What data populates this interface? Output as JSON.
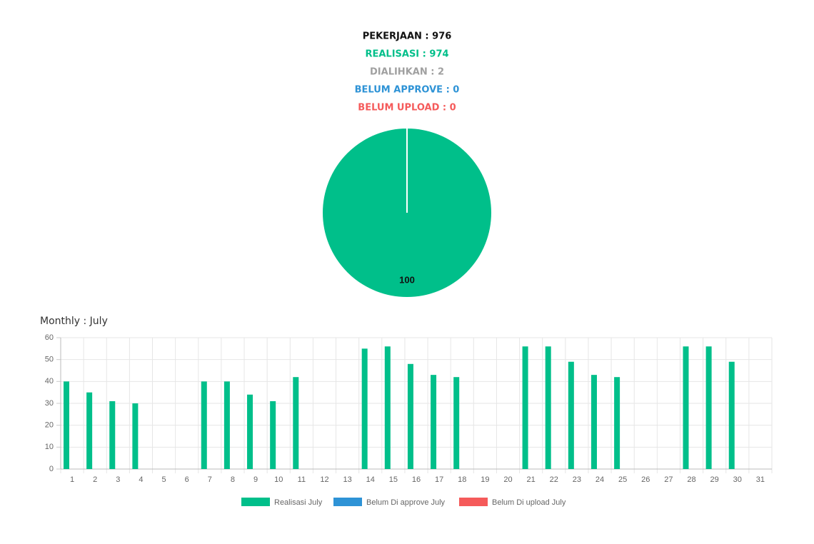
{
  "summary": [
    {
      "text": "PEKERJAAN : 976",
      "color": "#111111"
    },
    {
      "text": "REALISASI : 974",
      "color": "#00bf8a"
    },
    {
      "text": "DIALIHKAN : 2",
      "color": "#a0a0a0"
    },
    {
      "text": "BELUM APPROVE : 0",
      "color": "#2e93d6"
    },
    {
      "text": "BELUM UPLOAD : 0",
      "color": "#f55a5a"
    }
  ],
  "chart_data": [
    {
      "type": "pie",
      "values": [
        100
      ],
      "value_labels": [
        "100"
      ],
      "colors": [
        "#00bf8a"
      ]
    },
    {
      "type": "bar",
      "title": "Monthly : July",
      "categories": [
        "1",
        "2",
        "3",
        "4",
        "5",
        "6",
        "7",
        "8",
        "9",
        "10",
        "11",
        "12",
        "13",
        "14",
        "15",
        "16",
        "17",
        "18",
        "19",
        "20",
        "21",
        "22",
        "23",
        "24",
        "25",
        "26",
        "27",
        "28",
        "29",
        "30",
        "31"
      ],
      "series": [
        {
          "name": "Realisasi July",
          "color": "#00bf8a",
          "values": [
            40,
            35,
            31,
            30,
            0,
            0,
            40,
            40,
            34,
            31,
            42,
            0,
            0,
            55,
            56,
            48,
            43,
            42,
            0,
            0,
            56,
            56,
            49,
            43,
            42,
            0,
            0,
            56,
            56,
            49,
            0
          ]
        },
        {
          "name": "Belum Di approve July",
          "color": "#2e93d6",
          "values": [
            0,
            0,
            0,
            0,
            0,
            0,
            0,
            0,
            0,
            0,
            0,
            0,
            0,
            0,
            0,
            0,
            0,
            0,
            0,
            0,
            0,
            0,
            0,
            0,
            0,
            0,
            0,
            0,
            0,
            0,
            0
          ]
        },
        {
          "name": "Belum Di upload July",
          "color": "#f55a5a",
          "values": [
            0,
            0,
            0,
            0,
            0,
            0,
            0,
            0,
            0,
            0,
            0,
            0,
            0,
            0,
            0,
            0,
            0,
            0,
            0,
            0,
            0,
            0,
            0,
            0,
            0,
            0,
            0,
            0,
            0,
            0,
            0
          ]
        }
      ],
      "ylim": [
        0,
        60
      ],
      "yticks": [
        0,
        10,
        20,
        30,
        40,
        50,
        60
      ],
      "grid": true,
      "legend": "bottom"
    }
  ]
}
